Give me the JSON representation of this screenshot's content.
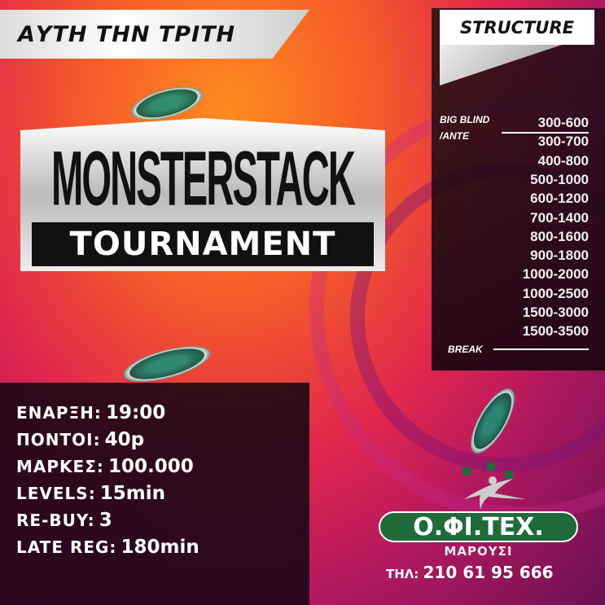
{
  "banner": {
    "day": "ΑΥΤΗ ΤΗΝ ΤΡΙΤΗ"
  },
  "logo": {
    "title": "MONSTERSTACK",
    "subtitle": "TOURNAMENT"
  },
  "structure": {
    "heading": "STRUCTURE",
    "label_top_1": "BIG BLIND",
    "label_top_2": "/ANTE",
    "label_break": "BREAK",
    "levels": [
      "300-600",
      "300-700",
      "400-800",
      "500-1000",
      "600-1200",
      "700-1400",
      "800-1600",
      "900-1800",
      "1000-2000",
      "1000-2500",
      "1500-3000",
      "1500-3500"
    ]
  },
  "info": [
    {
      "key": "ΕΝΑΡΞΗ:",
      "value": "19:00"
    },
    {
      "key": "ΠΟΝΤΟΙ:",
      "value": "40p"
    },
    {
      "key": "ΜΑΡΚΕΣ:",
      "value": "100.000"
    },
    {
      "key": "LEVELS:",
      "value": "15min"
    },
    {
      "key": "RE-BUY:",
      "value": "3"
    },
    {
      "key": "LATE REG:",
      "value": "180min"
    }
  ],
  "club": {
    "name": "Ο.ΦΙ.ΤΕΧ.",
    "location": "ΜΑΡΟΥΣΙ",
    "phone_label": "ΤΗΛ:",
    "phone": "210 61 95 666",
    "brand_color": "#1f6b3a"
  }
}
